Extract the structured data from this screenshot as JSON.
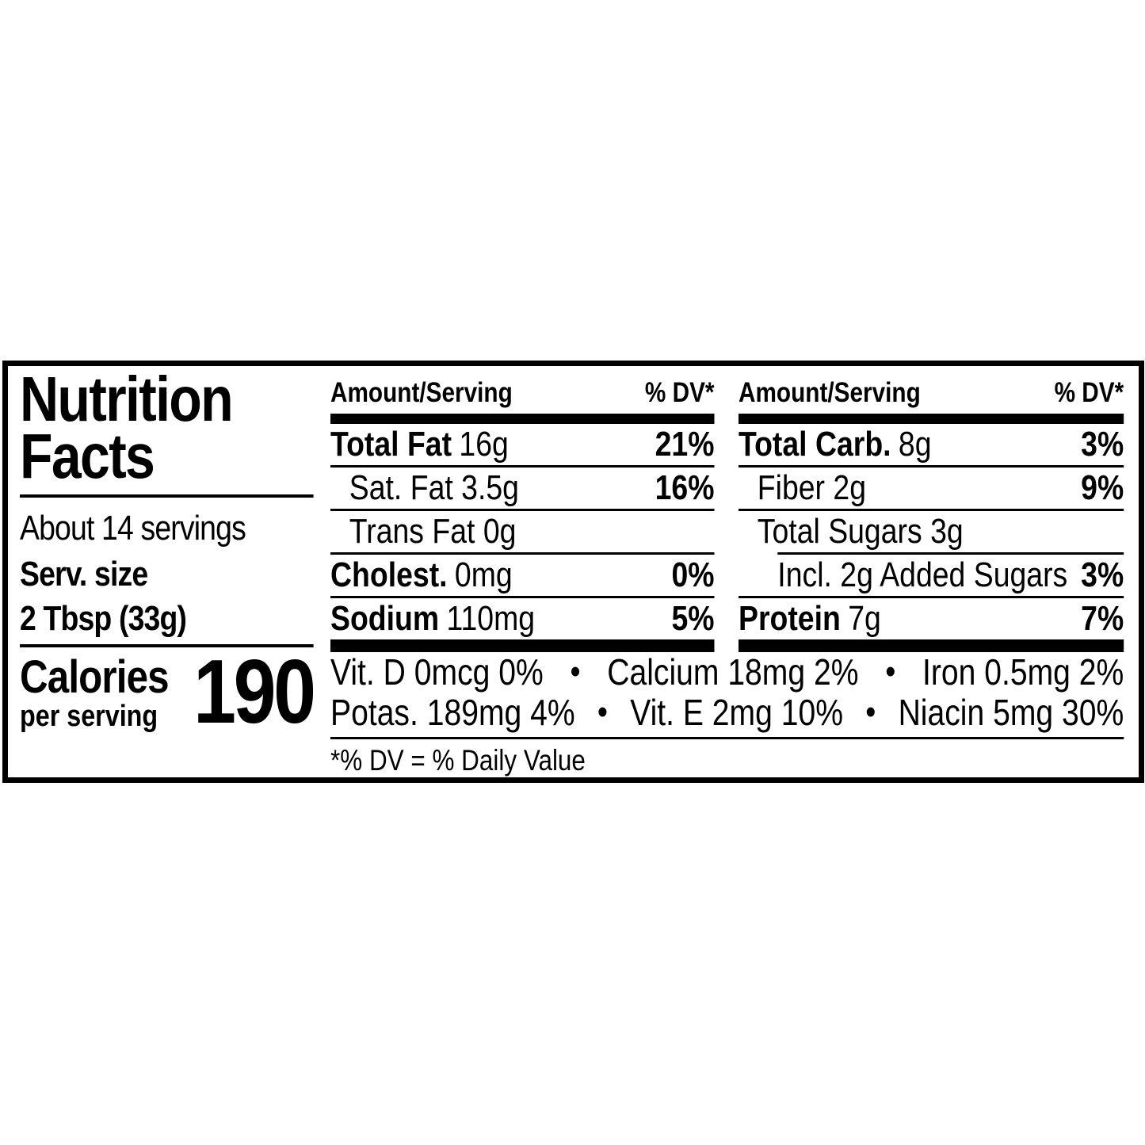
{
  "colors": {
    "ink": "#000000",
    "background": "#ffffff"
  },
  "label": {
    "title_line1": "Nutrition",
    "title_line2": "Facts",
    "servings_text": "About 14 servings",
    "serving_size_label": "Serv. size",
    "serving_size_value": "2 Tbsp (33g)",
    "calories_label": "Calories",
    "calories_sublabel": "per serving",
    "calories_value": "190",
    "column_header": {
      "amount": "Amount/Serving",
      "dv": "% DV*"
    },
    "columns": [
      {
        "rows": [
          {
            "name": "Total Fat",
            "value": "16g",
            "dv": "21%"
          },
          {
            "name": "Sat. Fat 3.5g",
            "value": "",
            "dv": "16%"
          },
          {
            "name": "Trans Fat 0g",
            "value": "",
            "dv": ""
          },
          {
            "name": "Cholest.",
            "value": "0mg",
            "dv": "0%"
          },
          {
            "name": "Sodium",
            "value": "110mg",
            "dv": "5%"
          }
        ]
      },
      {
        "rows": [
          {
            "name": "Total Carb.",
            "value": "8g",
            "dv": "3%"
          },
          {
            "name": "Fiber 2g",
            "value": "",
            "dv": "9%"
          },
          {
            "name": "Total Sugars 3g",
            "value": "",
            "dv": ""
          },
          {
            "name": "Incl. 2g Added Sugars",
            "value": "",
            "dv": "3%"
          },
          {
            "name": "Protein",
            "value": "7g",
            "dv": "7%"
          }
        ]
      }
    ],
    "micronutrients": {
      "separator": "•",
      "line1": [
        "Vit. D 0mcg 0%",
        "Calcium 18mg 2%",
        "Iron 0.5mg 2%"
      ],
      "line2": [
        "Potas. 189mg 4%",
        "Vit. E 2mg 10%",
        "Niacin 5mg 30%"
      ]
    },
    "footnote": "*% DV = % Daily Value"
  }
}
